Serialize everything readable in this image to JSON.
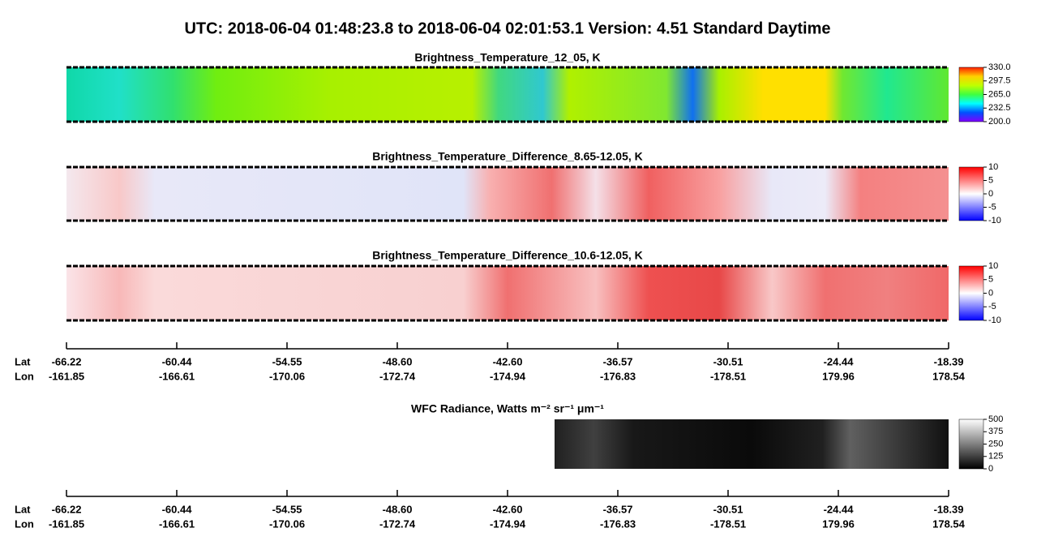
{
  "title": "UTC:  2018-06-04   01:48:23.8  to  2018-06-04   02:01:53.1    Version: 4.51  Standard Daytime",
  "chart_data": [
    {
      "type": "heatmap",
      "title": "Brightness_Temperature_12_05, K",
      "ylim": [
        200,
        330
      ],
      "yticks": [
        {
          "value": 330,
          "label": "330.0"
        },
        {
          "value": 297.5,
          "label": "297.5"
        },
        {
          "value": 265,
          "label": "265.0"
        },
        {
          "value": 232.5,
          "label": "232.5"
        },
        {
          "value": 200,
          "label": "200.0"
        }
      ],
      "colorscale": [
        "#8000ff",
        "#0050ff",
        "#00ffff",
        "#40ff40",
        "#c0ff00",
        "#ffd000",
        "#ff2000"
      ]
    },
    {
      "type": "heatmap",
      "title": "Brightness_Temperature_Difference_8.65-12.05, K",
      "ylim": [
        -10,
        10
      ],
      "yticks": [
        10,
        5,
        0,
        -5,
        -10
      ],
      "colorscale": [
        "#0000ff",
        "#8080ff",
        "#ffffff",
        "#ff8080",
        "#ff0000"
      ]
    },
    {
      "type": "heatmap",
      "title": "Brightness_Temperature_Difference_10.6-12.05, K",
      "ylim": [
        -10,
        10
      ],
      "yticks": [
        10,
        5,
        0,
        -5,
        -10
      ],
      "colorscale": [
        "#0000ff",
        "#8080ff",
        "#ffffff",
        "#ff8080",
        "#ff0000"
      ]
    },
    {
      "type": "heatmap",
      "title": "WFC Radiance, Watts m⁻² sr⁻¹ μm⁻¹",
      "ylim": [
        0,
        500
      ],
      "yticks": [
        500,
        375,
        250,
        125,
        0
      ],
      "colorscale": [
        "#000000",
        "#ffffff"
      ]
    }
  ],
  "axes": [
    {
      "lat_label": "Lat",
      "lon_label": "Lon",
      "lat": [
        "-66.22",
        "-60.44",
        "-54.55",
        "-48.60",
        "-42.60",
        "-36.57",
        "-30.51",
        "-24.44",
        "-18.39"
      ],
      "lon": [
        "-161.85",
        "-166.61",
        "-170.06",
        "-172.74",
        "-174.94",
        "-176.83",
        "-178.51",
        "179.96",
        "178.54"
      ]
    },
    {
      "lat_label": "Lat",
      "lon_label": "Lon",
      "lat": [
        "-66.22",
        "-60.44",
        "-54.55",
        "-48.60",
        "-42.60",
        "-36.57",
        "-30.51",
        "-24.44",
        "-18.39"
      ],
      "lon": [
        "-161.85",
        "-166.61",
        "-170.06",
        "-172.74",
        "-174.94",
        "-176.83",
        "-178.51",
        "179.96",
        "178.54"
      ]
    }
  ]
}
